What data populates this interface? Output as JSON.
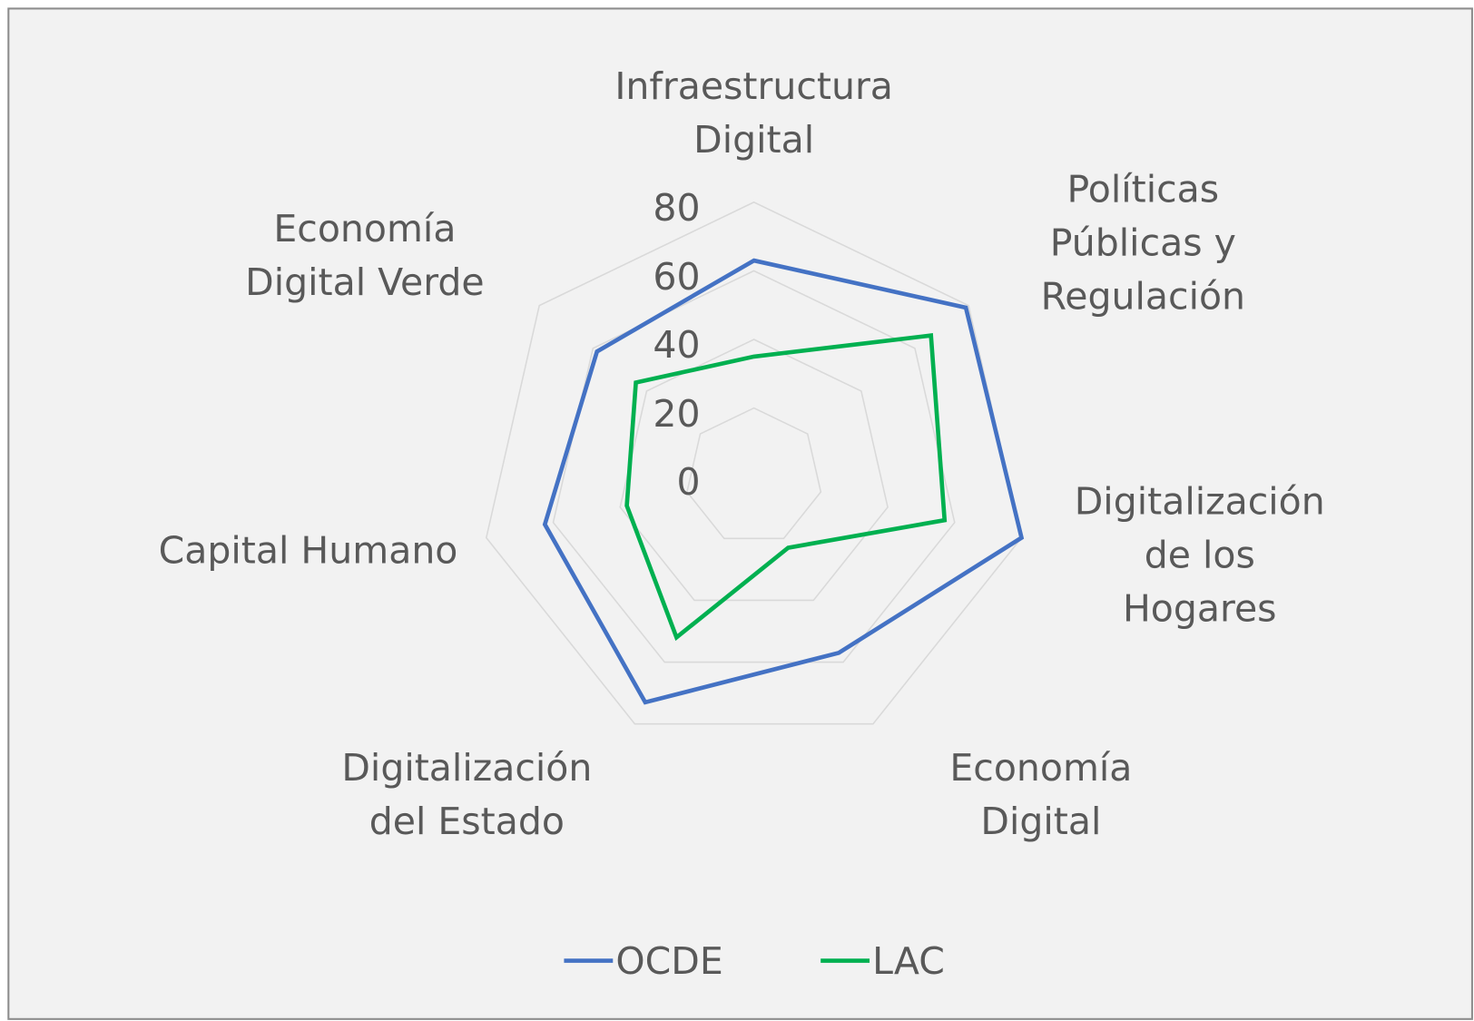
{
  "chart_data": {
    "type": "radar",
    "categories": [
      "Infraestructura\nDigital",
      "Políticas\nPúblicas y\nRegulación",
      "Digitalización\nde los Hogares",
      "Economía\nDigital",
      "Digitalización\ndel Estado",
      "Capital Humano",
      "Economía\nDigital Verde"
    ],
    "series": [
      {
        "name": "OCDE",
        "color": "#4472c4",
        "values": [
          63,
          79,
          80,
          57,
          73,
          62.5,
          58.5
        ]
      },
      {
        "name": "LAC",
        "color": "#00b050",
        "values": [
          35,
          66,
          57,
          23,
          52,
          38,
          44
        ]
      }
    ],
    "ylim": [
      0,
      80
    ],
    "yticks": [
      0,
      20,
      40,
      60,
      80
    ],
    "grid": true,
    "legend": "bottom"
  }
}
